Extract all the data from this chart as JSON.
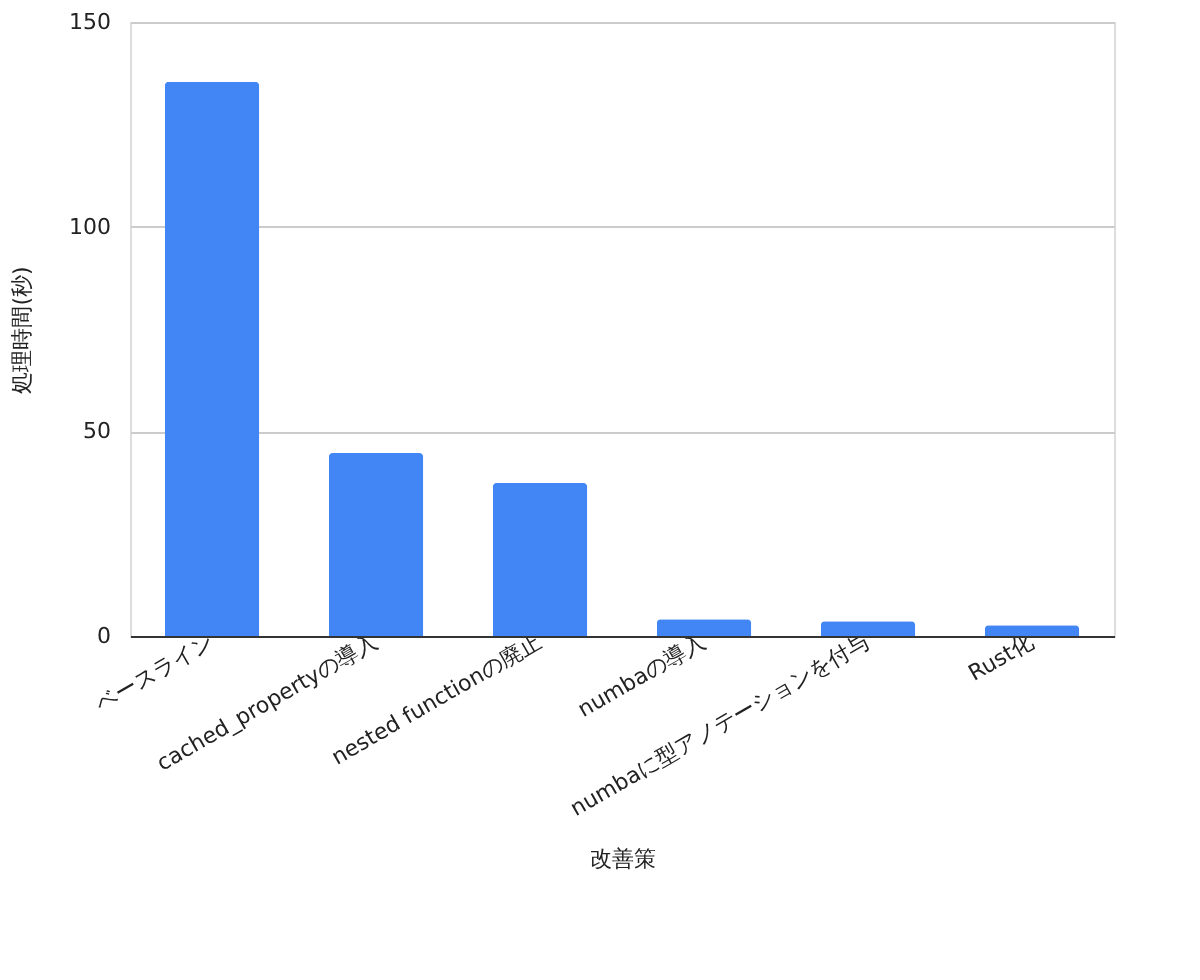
{
  "chart_data": {
    "type": "bar",
    "xlabel": "改善策",
    "ylabel": "処理時間(秒)",
    "categories": [
      "ベースライン",
      "cached_propertyの導入",
      "nested functionの廃止",
      "numbaの導入",
      "numbaに型アノテーションを付与",
      "Rust化"
    ],
    "values": [
      135.4,
      44.7,
      37.4,
      4.1,
      3.6,
      2.6
    ],
    "color": "#4285f4",
    "ylim": [
      0,
      150
    ],
    "yticks": [
      0,
      50,
      100,
      150
    ],
    "grid": "y"
  }
}
